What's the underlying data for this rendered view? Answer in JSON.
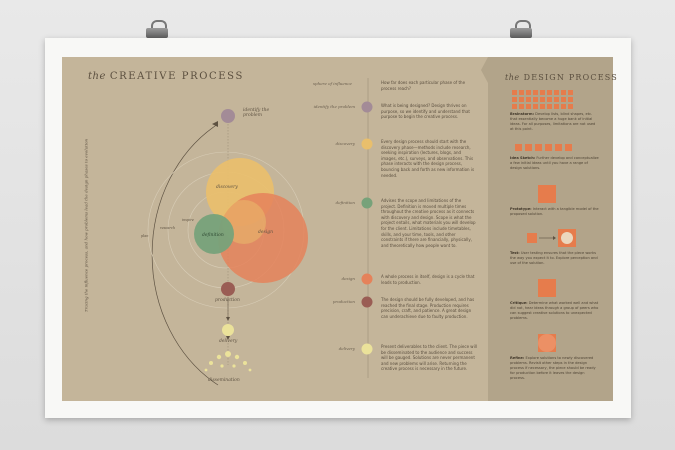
{
  "poster": {
    "title_prefix": "the",
    "title": "CREATIVE PROCESS",
    "right_title_prefix": "the",
    "right_title": "DESIGN PROCESS",
    "vertical_text": "Tracing the influence process, and how problems lead the design phases to evolution",
    "colors": {
      "background": "#c4b59a",
      "panel": "#b2a48a",
      "yellow": "#e9bf6c",
      "orange": "#e5825a",
      "green": "#77a27a",
      "mauve": "#a38b97",
      "brown": "#9a5d54",
      "cream": "#ebe29a",
      "square": "#e67c4c"
    }
  },
  "diagram": {
    "labels": {
      "identify": "identify the problem",
      "discovery": "discovery",
      "definition": "definition",
      "design": "design",
      "production": "production",
      "delivery": "delivery",
      "dissemination": "dissemination",
      "ring1": "inspire",
      "ring2": "research",
      "ring3": "plan"
    }
  },
  "table": {
    "col1": "sphere of influence",
    "col2": "How far does each particular phase of the process reach?",
    "rows": [
      {
        "label": "identify the problem",
        "color": "#a38b97",
        "text": "What is being designed? Design thrives on purpose, so we identify and understand that purpose to begin the creative process."
      },
      {
        "label": "discovery",
        "color": "#e9bf6c",
        "text": "Every design process should start with the discovery phase—methods include research, seeking inspiration (lectures, blogs, and images, etc.), surveys, and observations. This phase interacts with the design process, bouncing back and forth as new information is needed."
      },
      {
        "label": "definition",
        "color": "#77a27a",
        "text": "Advises the scope and limitations of the project. Definition is moved multiple times throughout the creative process as it connects with discovery and design. Scope is what the project entails, what materials you will develop for the client. Limitations include timetables, skills, and your time, tools, and other constraints if there are financially, physically, and theoretically how people want to."
      },
      {
        "label": "design",
        "color": "#e5825a",
        "text": "A whole process in itself, design is a cycle that leads to production."
      },
      {
        "label": "production",
        "color": "#9a5d54",
        "text": "The design should be fully developed, and has reached the final stage. Production requires precision, craft, and patience. A great design can underachieve due to faulty production."
      },
      {
        "label": "delivery",
        "color": "#ebe29a",
        "text": "Present deliverables to the client. The piece will be disseminated to the audience and success will be gauged. Solutions are never permanent and new problems will arise. Returning the creative process is necessary in the future."
      }
    ]
  },
  "design_steps": [
    {
      "title": "Brainstorm:",
      "text": "Develop lists, blind shapes, etc. that essentially become a huge bank of initial ideas. For all purposes, limitations are not used at this point."
    },
    {
      "title": "Idea Sketch:",
      "text": "Further develop and conceptualize a few initial ideas until you have a range of design solutions."
    },
    {
      "title": "Prototype:",
      "text": "Interact with a tangible model of the proposed solution."
    },
    {
      "title": "Test:",
      "text": "User testing ensures that the piece works the way you expect it to. Explore perception and use of the solution."
    },
    {
      "title": "Critique:",
      "text": "Determine what worked well and what did not, hear ideas through a group of peers who can suggest creative solutions to unexpected problems."
    },
    {
      "title": "Refine:",
      "text": "Explore solutions to newly discovered problems. Revisit other steps in the design process if necessary, the piece should be ready for production before it leaves the design process."
    }
  ]
}
